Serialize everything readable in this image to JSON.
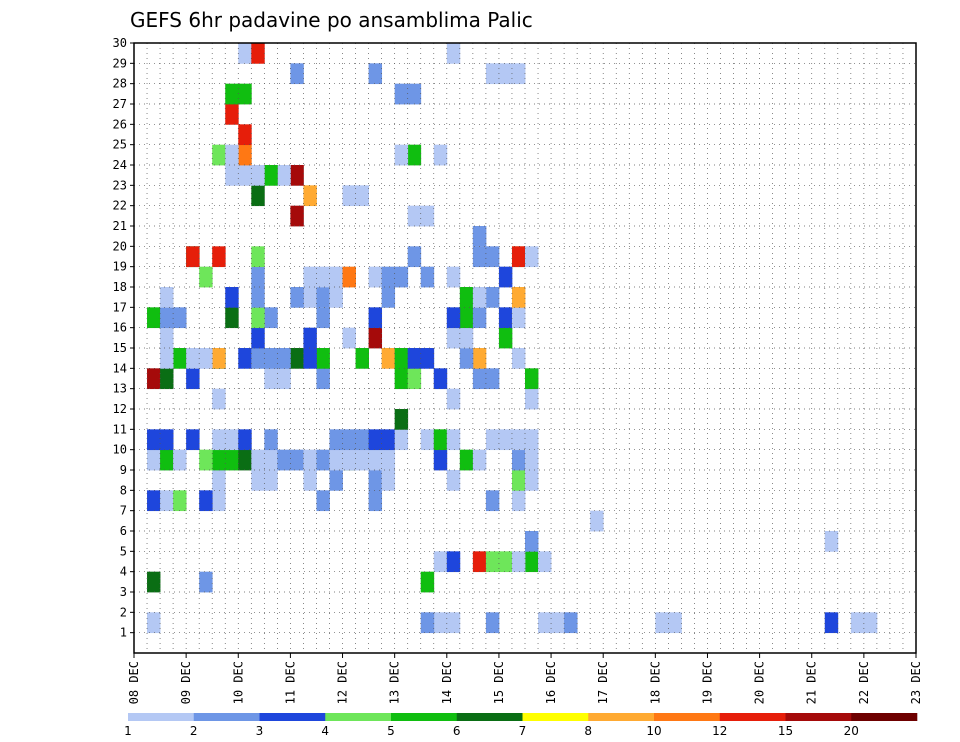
{
  "chart_data": {
    "type": "heatmap",
    "title": "GEFS 6hr padavine po ansamblima Palic",
    "xlabel": "",
    "ylabel": "",
    "x_tick_labels": [
      "08 DEC",
      "09 DEC",
      "10 DEC",
      "11 DEC",
      "12 DEC",
      "13 DEC",
      "14 DEC",
      "15 DEC",
      "16 DEC",
      "17 DEC",
      "18 DEC",
      "19 DEC",
      "20 DEC",
      "21 DEC",
      "22 DEC",
      "23 DEC"
    ],
    "xlim": [
      0,
      60
    ],
    "y_tick_labels": [
      "1",
      "2",
      "3",
      "4",
      "5",
      "6",
      "7",
      "8",
      "9",
      "10",
      "11",
      "12",
      "13",
      "14",
      "15",
      "16",
      "17",
      "18",
      "19",
      "20",
      "21",
      "22",
      "23",
      "24",
      "25",
      "26",
      "27",
      "28",
      "29",
      "30"
    ],
    "ylim": [
      0,
      30
    ],
    "grid": true,
    "colorbar": {
      "labels": [
        "1",
        "2",
        "3",
        "4",
        "5",
        "6",
        "7",
        "8",
        "10",
        "12",
        "15",
        "20"
      ],
      "colors": [
        "#b4c8f4",
        "#6e96e6",
        "#1e46dc",
        "#6ee65a",
        "#10be10",
        "#0a6e14",
        "#ffff00",
        "#ffaa32",
        "#ff7814",
        "#e61e0a",
        "#a50a0a",
        "#6e0000"
      ]
    },
    "cells": [
      [
        2,
        1,
        1
      ],
      [
        2,
        1,
        24
      ],
      [
        2,
        1,
        23
      ],
      [
        2,
        2,
        22
      ],
      [
        2,
        2,
        27
      ],
      [
        2,
        1,
        31
      ],
      [
        2,
        1,
        32
      ],
      [
        2,
        2,
        33
      ],
      [
        2,
        1,
        40
      ],
      [
        2,
        1,
        41
      ],
      [
        2,
        3,
        53
      ],
      [
        2,
        1,
        55
      ],
      [
        2,
        1,
        56
      ],
      [
        4,
        5,
        22
      ],
      [
        4,
        6,
        1
      ],
      [
        4,
        2,
        5
      ],
      [
        5,
        1,
        23
      ],
      [
        5,
        3,
        24
      ],
      [
        5,
        5,
        30
      ],
      [
        5,
        10,
        26
      ],
      [
        5,
        4,
        27
      ],
      [
        5,
        4,
        28
      ],
      [
        5,
        1,
        29
      ],
      [
        5,
        1,
        31
      ],
      [
        6,
        2,
        30
      ],
      [
        6,
        1,
        53
      ],
      [
        7,
        1,
        35
      ],
      [
        8,
        3,
        1
      ],
      [
        8,
        1,
        2
      ],
      [
        8,
        1,
        6
      ],
      [
        8,
        4,
        3
      ],
      [
        8,
        3,
        5
      ],
      [
        8,
        2,
        14
      ],
      [
        8,
        2,
        18
      ],
      [
        8,
        2,
        27
      ],
      [
        8,
        1,
        29
      ],
      [
        9,
        1,
        6
      ],
      [
        9,
        1,
        9
      ],
      [
        9,
        1,
        10
      ],
      [
        9,
        1,
        13
      ],
      [
        9,
        2,
        15
      ],
      [
        9,
        2,
        18
      ],
      [
        9,
        1,
        19
      ],
      [
        9,
        1,
        24
      ],
      [
        9,
        4,
        29
      ],
      [
        9,
        1,
        30
      ],
      [
        10,
        1,
        1
      ],
      [
        10,
        1,
        2
      ],
      [
        10,
        5,
        6
      ],
      [
        10,
        5,
        7
      ],
      [
        10,
        6,
        8
      ],
      [
        10,
        6,
        16
      ],
      [
        10,
        5,
        2
      ],
      [
        10,
        1,
        3
      ],
      [
        10,
        4,
        5
      ],
      [
        10,
        1,
        9
      ],
      [
        10,
        1,
        10
      ],
      [
        10,
        2,
        11
      ],
      [
        10,
        2,
        12
      ],
      [
        10,
        1,
        13
      ],
      [
        10,
        2,
        14
      ],
      [
        10,
        1,
        15
      ],
      [
        10,
        1,
        16
      ],
      [
        10,
        1,
        17
      ],
      [
        10,
        1,
        18
      ],
      [
        10,
        1,
        19
      ],
      [
        10,
        3,
        23
      ],
      [
        10,
        5,
        25
      ],
      [
        10,
        1,
        26
      ],
      [
        10,
        2,
        29
      ],
      [
        10,
        1,
        30
      ],
      [
        11,
        3,
        1
      ],
      [
        11,
        3,
        2
      ],
      [
        11,
        3,
        4
      ],
      [
        11,
        1,
        6
      ],
      [
        11,
        1,
        7
      ],
      [
        11,
        3,
        8
      ],
      [
        11,
        2,
        10
      ],
      [
        11,
        2,
        15
      ],
      [
        11,
        2,
        16
      ],
      [
        11,
        2,
        17
      ],
      [
        11,
        3,
        18
      ],
      [
        11,
        3,
        19
      ],
      [
        11,
        1,
        20
      ],
      [
        11,
        1,
        22
      ],
      [
        11,
        5,
        23
      ],
      [
        11,
        1,
        24
      ],
      [
        11,
        1,
        27
      ],
      [
        11,
        1,
        28
      ],
      [
        11,
        1,
        29
      ],
      [
        11,
        1,
        30
      ],
      [
        12,
        6,
        20
      ],
      [
        13,
        1,
        6
      ],
      [
        13,
        1,
        24
      ],
      [
        13,
        1,
        30
      ],
      [
        14,
        11,
        1
      ],
      [
        14,
        6,
        2
      ],
      [
        14,
        1,
        10
      ],
      [
        14,
        1,
        11
      ],
      [
        14,
        3,
        4
      ],
      [
        14,
        3,
        23
      ],
      [
        14,
        5,
        20
      ],
      [
        14,
        5,
        30
      ],
      [
        14,
        2,
        27
      ],
      [
        14,
        2,
        26
      ],
      [
        14,
        2,
        14
      ],
      [
        14,
        4,
        21
      ],
      [
        15,
        5,
        3
      ],
      [
        15,
        1,
        2
      ],
      [
        15,
        6,
        6
      ],
      [
        15,
        8,
        6
      ],
      [
        15,
        5,
        14
      ],
      [
        15,
        6,
        12
      ],
      [
        15,
        5,
        17
      ],
      [
        15,
        8,
        19
      ],
      [
        15,
        3,
        13
      ],
      [
        15,
        3,
        8
      ],
      [
        15,
        1,
        4
      ],
      [
        15,
        1,
        5
      ],
      [
        15,
        2,
        9
      ],
      [
        15,
        2,
        10
      ],
      [
        15,
        2,
        11
      ],
      [
        15,
        5,
        20
      ],
      [
        15,
        3,
        22
      ],
      [
        15,
        3,
        21
      ],
      [
        15,
        8,
        26
      ],
      [
        15,
        2,
        25
      ],
      [
        15,
        1,
        29
      ],
      [
        16,
        11,
        18
      ],
      [
        16,
        3,
        9
      ],
      [
        16,
        1,
        2
      ],
      [
        16,
        1,
        24
      ],
      [
        16,
        1,
        25
      ],
      [
        16,
        5,
        28
      ],
      [
        16,
        3,
        13
      ],
      [
        16,
        1,
        16
      ],
      [
        17,
        5,
        1
      ],
      [
        17,
        2,
        2
      ],
      [
        17,
        6,
        7
      ],
      [
        17,
        2,
        10
      ],
      [
        17,
        2,
        14
      ],
      [
        17,
        5,
        25
      ],
      [
        17,
        3,
        24
      ],
      [
        17,
        4,
        9
      ],
      [
        17,
        3,
        18
      ],
      [
        17,
        3,
        28
      ],
      [
        17,
        1,
        29
      ],
      [
        17,
        2,
        26
      ],
      [
        17,
        2,
        3
      ],
      [
        18,
        1,
        13
      ],
      [
        18,
        1,
        14
      ],
      [
        18,
        2,
        9
      ],
      [
        18,
        2,
        12
      ],
      [
        18,
        1,
        2
      ],
      [
        18,
        5,
        25
      ],
      [
        18,
        2,
        27
      ],
      [
        18,
        2,
        14
      ],
      [
        18,
        2,
        19
      ],
      [
        18,
        1,
        15
      ],
      [
        18,
        3,
        7
      ],
      [
        18,
        1,
        26
      ],
      [
        18,
        8,
        29
      ],
      [
        19,
        4,
        5
      ],
      [
        19,
        1,
        24
      ],
      [
        19,
        2,
        22
      ],
      [
        19,
        1,
        18
      ],
      [
        19,
        2,
        19
      ],
      [
        19,
        2,
        20
      ],
      [
        19,
        3,
        28
      ],
      [
        19,
        2,
        9
      ],
      [
        19,
        1,
        13
      ],
      [
        19,
        1,
        14
      ],
      [
        19,
        1,
        15
      ],
      [
        19,
        9,
        16
      ],
      [
        20,
        6,
        4
      ],
      [
        20,
        10,
        4
      ],
      [
        20,
        10,
        6
      ],
      [
        20,
        4,
        9
      ],
      [
        20,
        2,
        26
      ],
      [
        20,
        8,
        29
      ],
      [
        20,
        2,
        21
      ],
      [
        20,
        10,
        29
      ],
      [
        20,
        2,
        27
      ],
      [
        20,
        1,
        30
      ],
      [
        21,
        1,
        26
      ],
      [
        21,
        2,
        26
      ],
      [
        22,
        1,
        21
      ],
      [
        22,
        1,
        22
      ],
      [
        22,
        11,
        12
      ],
      [
        23,
        1,
        16
      ],
      [
        23,
        1,
        17
      ],
      [
        23,
        6,
        9
      ],
      [
        23,
        8,
        13
      ],
      [
        24,
        11,
        12
      ],
      [
        24,
        1,
        11
      ],
      [
        24,
        5,
        10
      ],
      [
        24,
        1,
        7
      ],
      [
        24,
        1,
        8
      ],
      [
        24,
        1,
        9
      ],
      [
        25,
        9,
        8
      ],
      [
        25,
        4,
        6
      ],
      [
        25,
        1,
        7
      ],
      [
        25,
        5,
        21
      ],
      [
        25,
        1,
        20
      ],
      [
        25,
        1,
        23
      ],
      [
        26,
        10,
        8
      ],
      [
        27,
        10,
        7
      ],
      [
        28,
        5,
        8
      ],
      [
        28,
        5,
        7
      ],
      [
        28,
        2,
        21
      ],
      [
        28,
        2,
        20
      ],
      [
        29,
        2,
        18
      ],
      [
        29,
        2,
        12
      ],
      [
        29,
        1,
        27
      ],
      [
        29,
        1,
        28
      ],
      [
        29,
        1,
        29
      ],
      [
        30,
        1,
        8
      ],
      [
        30,
        1,
        24
      ],
      [
        30,
        10,
        9
      ]
    ]
  }
}
